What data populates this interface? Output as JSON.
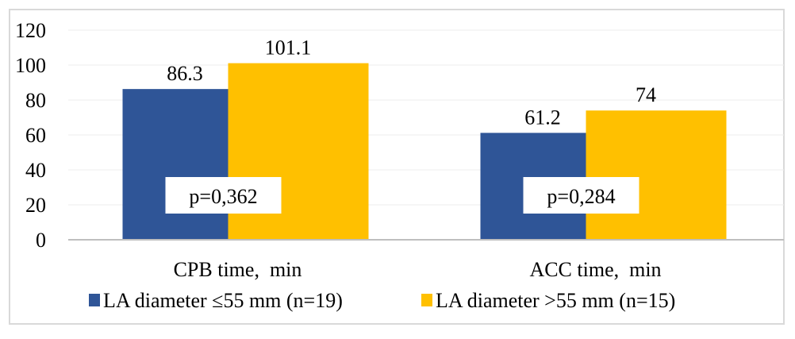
{
  "chart_data": {
    "type": "bar",
    "title": "",
    "xlabel": "",
    "ylabel": "",
    "ylim": [
      0,
      120
    ],
    "yticks": [
      0,
      20,
      40,
      60,
      80,
      100,
      120
    ],
    "grid": true,
    "legend_position": "bottom",
    "categories": [
      "CPB time,  min",
      "ACC time,  min"
    ],
    "series": [
      {
        "name": "LA diameter ≤55 mm (n=19)",
        "color": "#2f5597",
        "values": [
          86.3,
          61.2
        ],
        "labels": [
          "86.3",
          "61.2"
        ]
      },
      {
        "name": "LA diameter >55 mm (n=15)",
        "color": "#ffc000",
        "values": [
          101.1,
          74
        ],
        "labels": [
          "101.1",
          "74"
        ]
      }
    ],
    "annotations": [
      "p=0,362",
      "p=0,284"
    ]
  }
}
